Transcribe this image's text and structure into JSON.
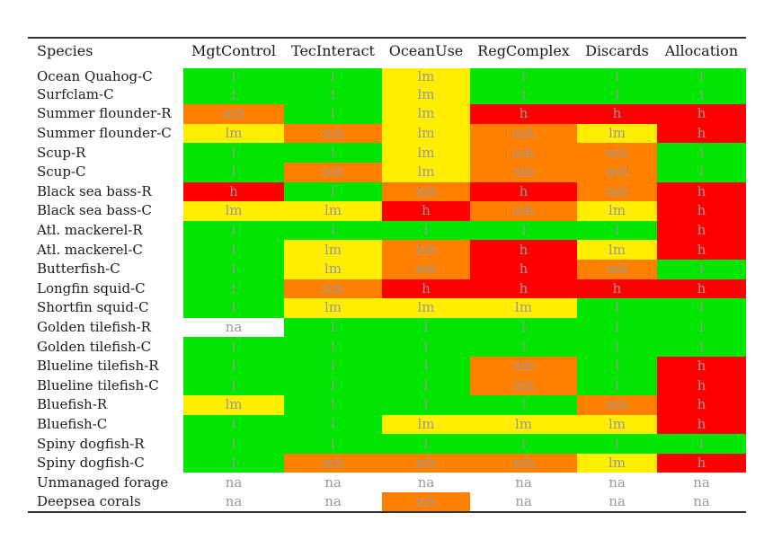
{
  "chart_data": {
    "type": "table",
    "columns": [
      "Species",
      "MgtControl",
      "TecInteract",
      "OceanUse",
      "RegComplex",
      "Discards",
      "Allocation"
    ],
    "colors": {
      "l": "#00e600",
      "lm": "#ffee00",
      "mh": "#ff8000",
      "h": "#ff0000",
      "na": "#ffffff"
    },
    "rows": [
      {
        "species": "Ocean Quahog-C",
        "values": [
          "l",
          "l",
          "lm",
          "l",
          "l",
          "l"
        ]
      },
      {
        "species": "Surfclam-C",
        "values": [
          "l",
          "l",
          "lm",
          "l",
          "l",
          "l"
        ]
      },
      {
        "species": "Summer flounder-R",
        "values": [
          "mh",
          "l",
          "lm",
          "h",
          "h",
          "h"
        ]
      },
      {
        "species": "Summer flounder-C",
        "values": [
          "lm",
          "mh",
          "lm",
          "mh",
          "lm",
          "h"
        ]
      },
      {
        "species": "Scup-R",
        "values": [
          "l",
          "l",
          "lm",
          "mh",
          "mh",
          "l"
        ]
      },
      {
        "species": "Scup-C",
        "values": [
          "l",
          "mh",
          "lm",
          "mh",
          "mh",
          "l"
        ]
      },
      {
        "species": "Black sea bass-R",
        "values": [
          "h",
          "l",
          "mh",
          "h",
          "mh",
          "h"
        ]
      },
      {
        "species": "Black sea bass-C",
        "values": [
          "lm",
          "lm",
          "h",
          "mh",
          "lm",
          "h"
        ]
      },
      {
        "species": "Atl. mackerel-R",
        "values": [
          "l",
          "l",
          "l",
          "l",
          "l",
          "h"
        ]
      },
      {
        "species": "Atl. mackerel-C",
        "values": [
          "l",
          "lm",
          "mh",
          "h",
          "lm",
          "h"
        ]
      },
      {
        "species": "Butterfish-C",
        "values": [
          "l",
          "lm",
          "mh",
          "h",
          "mh",
          "l"
        ]
      },
      {
        "species": "Longfin squid-C",
        "values": [
          "l",
          "mh",
          "h",
          "h",
          "h",
          "h"
        ]
      },
      {
        "species": "Shortfin squid-C",
        "values": [
          "l",
          "lm",
          "lm",
          "lm",
          "l",
          "l"
        ]
      },
      {
        "species": "Golden tilefish-R",
        "values": [
          "na",
          "l",
          "l",
          "l",
          "l",
          "l"
        ]
      },
      {
        "species": "Golden tilefish-C",
        "values": [
          "l",
          "l",
          "l",
          "l",
          "l",
          "l"
        ]
      },
      {
        "species": "Blueline tilefish-R",
        "values": [
          "l",
          "l",
          "l",
          "mh",
          "l",
          "h"
        ]
      },
      {
        "species": "Blueline tilefish-C",
        "values": [
          "l",
          "l",
          "l",
          "mh",
          "l",
          "h"
        ]
      },
      {
        "species": "Bluefish-R",
        "values": [
          "lm",
          "l",
          "l",
          "l",
          "mh",
          "h"
        ]
      },
      {
        "species": "Bluefish-C",
        "values": [
          "l",
          "l",
          "lm",
          "lm",
          "lm",
          "h"
        ]
      },
      {
        "species": "Spiny dogfish-R",
        "values": [
          "l",
          "l",
          "l",
          "l",
          "l",
          "l"
        ]
      },
      {
        "species": "Spiny dogfish-C",
        "values": [
          "l",
          "mh",
          "mh",
          "mh",
          "lm",
          "h"
        ]
      },
      {
        "species": "Unmanaged forage",
        "values": [
          "na",
          "na",
          "na",
          "na",
          "na",
          "na"
        ]
      },
      {
        "species": "Deepsea corals",
        "values": [
          "na",
          "na",
          "mh",
          "na",
          "na",
          "na"
        ]
      }
    ]
  }
}
